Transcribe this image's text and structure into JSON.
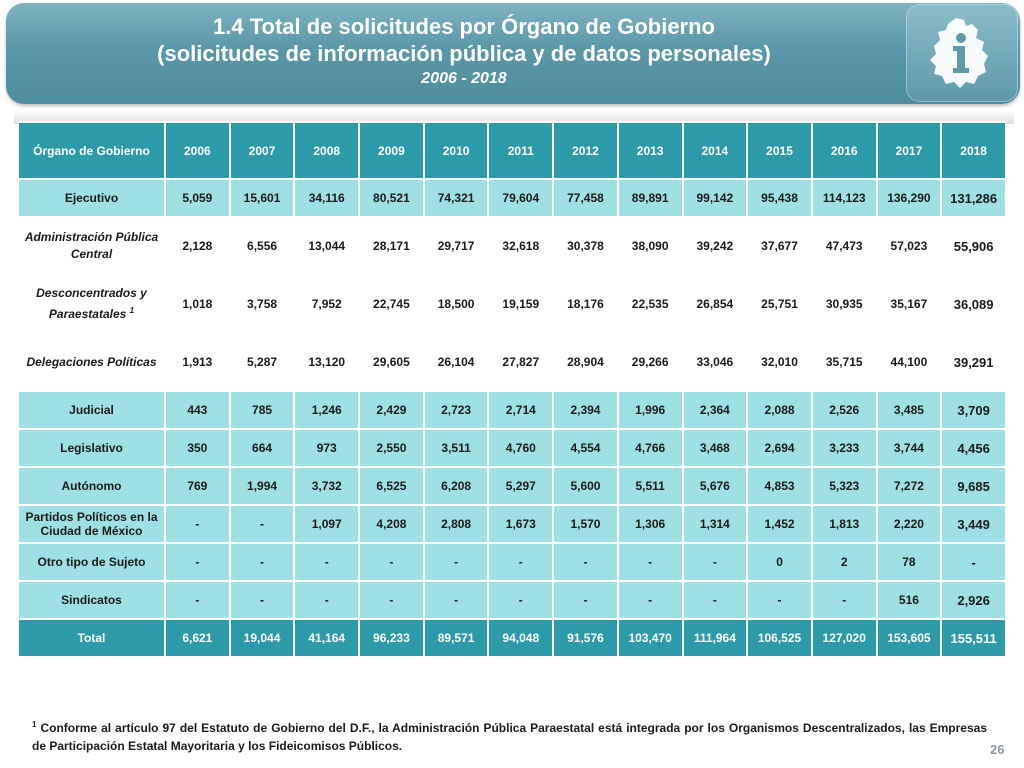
{
  "header": {
    "title_line1": "1.4 Total de solicitudes por Órgano de Gobierno",
    "title_line2": "(solicitudes de información pública y de datos personales)",
    "years": "2006 - 2018"
  },
  "table": {
    "first_header": "Órgano de Gobierno",
    "years": [
      "2006",
      "2007",
      "2008",
      "2009",
      "2010",
      "2011",
      "2012",
      "2013",
      "2014",
      "2015",
      "2016",
      "2017",
      "2018"
    ],
    "rows": [
      {
        "label": "Ejecutivo",
        "type": "main",
        "values": [
          "5,059",
          "15,601",
          "34,116",
          "80,521",
          "74,321",
          "79,604",
          "77,458",
          "89,891",
          "99,142",
          "95,438",
          "114,123",
          "136,290",
          "131,286"
        ]
      },
      {
        "label": "Administración Pública Central",
        "type": "sub",
        "values": [
          "2,128",
          "6,556",
          "13,044",
          "28,171",
          "29,717",
          "32,618",
          "30,378",
          "38,090",
          "39,242",
          "37,677",
          "47,473",
          "57,023",
          "55,906"
        ]
      },
      {
        "label": "Desconcentrados y Paraestatales",
        "sup": "1",
        "type": "sub",
        "values": [
          "1,018",
          "3,758",
          "7,952",
          "22,745",
          "18,500",
          "19,159",
          "18,176",
          "22,535",
          "26,854",
          "25,751",
          "30,935",
          "35,167",
          "36,089"
        ]
      },
      {
        "label": "Delegaciones Políticas",
        "type": "sub",
        "values": [
          "1,913",
          "5,287",
          "13,120",
          "29,605",
          "26,104",
          "27,827",
          "28,904",
          "29,266",
          "33,046",
          "32,010",
          "35,715",
          "44,100",
          "39,291"
        ]
      },
      {
        "label": "Judicial",
        "type": "main",
        "values": [
          "443",
          "785",
          "1,246",
          "2,429",
          "2,723",
          "2,714",
          "2,394",
          "1,996",
          "2,364",
          "2,088",
          "2,526",
          "3,485",
          "3,709"
        ]
      },
      {
        "label": "Legislativo",
        "type": "main",
        "values": [
          "350",
          "664",
          "973",
          "2,550",
          "3,511",
          "4,760",
          "4,554",
          "4,766",
          "3,468",
          "2,694",
          "3,233",
          "3,744",
          "4,456"
        ]
      },
      {
        "label": "Autónomo",
        "type": "main",
        "values": [
          "769",
          "1,994",
          "3,732",
          "6,525",
          "6,208",
          "5,297",
          "5,600",
          "5,511",
          "5,676",
          "4,853",
          "5,323",
          "7,272",
          "9,685"
        ]
      },
      {
        "label": "Partidos Políticos en la Ciudad de México",
        "type": "main",
        "values": [
          "-",
          "-",
          "1,097",
          "4,208",
          "2,808",
          "1,673",
          "1,570",
          "1,306",
          "1,314",
          "1,452",
          "1,813",
          "2,220",
          "3,449"
        ]
      },
      {
        "label": "Otro tipo de Sujeto",
        "type": "main",
        "values": [
          "-",
          "-",
          "-",
          "-",
          "-",
          "-",
          "-",
          "-",
          "-",
          "0",
          "2",
          "78",
          "-"
        ]
      },
      {
        "label": "Sindicatos",
        "type": "main",
        "values": [
          "-",
          "-",
          "-",
          "-",
          "-",
          "-",
          "-",
          "-",
          "-",
          "-",
          "-",
          "516",
          "2,926"
        ]
      },
      {
        "label": "Total",
        "type": "total",
        "values": [
          "6,621",
          "19,044",
          "41,164",
          "96,233",
          "89,571",
          "94,048",
          "91,576",
          "103,470",
          "111,964",
          "106,525",
          "127,020",
          "153,605",
          "155,511"
        ]
      }
    ]
  },
  "footnote": {
    "marker": "1",
    "text": "Conforme al artículo 97 del Estatuto de Gobierno del D.F., la Administración Pública Paraestatal está integrada por los Organismos Descentralizados, las Empresas de Participación Estatal Mayoritaria y los Fideicomisos Públicos."
  },
  "page_number": "26",
  "colors": {
    "header_bg": "#5a97a8",
    "table_header": "#2c9aa8",
    "row_main": "#9ee0e4",
    "row_sub": "#ffffff",
    "logo_mark": "#ffffff"
  },
  "logo_icon": "city-map-info-icon"
}
